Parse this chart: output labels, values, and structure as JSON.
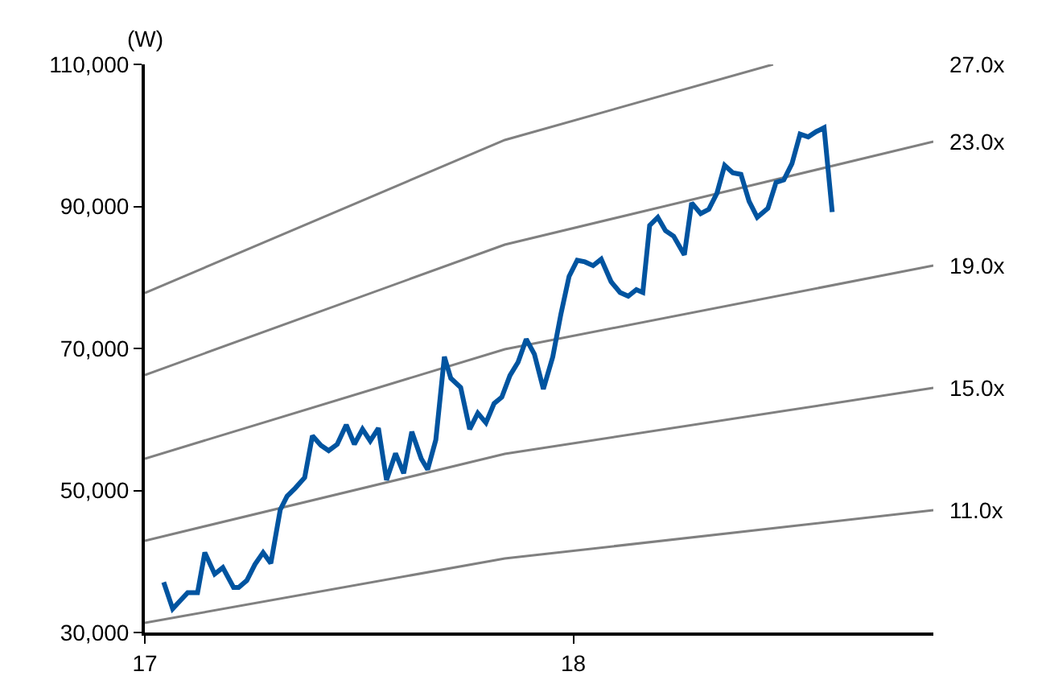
{
  "chart_data": {
    "type": "line",
    "ylabel": "(W)",
    "xlim": [
      17,
      18.84
    ],
    "xticks": [
      17,
      18
    ],
    "ylim": [
      30000,
      110000
    ],
    "yticks": [
      {
        "value": 30000,
        "label": "30,000"
      },
      {
        "value": 50000,
        "label": "50,000"
      },
      {
        "value": 70000,
        "label": "70,000"
      },
      {
        "value": 90000,
        "label": "90,000"
      },
      {
        "value": 110000,
        "label": "110,000"
      }
    ],
    "grid": false,
    "legend": false,
    "marker": "none",
    "line_style": "solid",
    "series": [
      {
        "name": "27.0x",
        "color": "#808080",
        "x": [
          17,
          17.84,
          18.466
        ],
        "values": [
          77800,
          99350,
          110000
        ]
      },
      {
        "name": "23.0x",
        "color": "#808080",
        "x": [
          17,
          17.84,
          18.84
        ],
        "values": [
          66260,
          84620,
          99120
        ]
      },
      {
        "name": "19.0x",
        "color": "#808080",
        "x": [
          17,
          17.84,
          18.84
        ],
        "values": [
          54480,
          69890,
          81670
        ]
      },
      {
        "name": "15.0x",
        "color": "#808080",
        "x": [
          17,
          17.84,
          18.84
        ],
        "values": [
          42920,
          55150,
          64440
        ]
      },
      {
        "name": "11.0x",
        "color": "#808080",
        "x": [
          17,
          17.84,
          18.84
        ],
        "values": [
          31360,
          40420,
          47220
        ]
      },
      {
        "color": "#0054a0",
        "x": [
          17.044,
          17.065,
          17.1,
          17.123,
          17.14,
          17.163,
          17.182,
          17.207,
          17.219,
          17.238,
          17.257,
          17.276,
          17.294,
          17.316,
          17.332,
          17.351,
          17.373,
          17.391,
          17.411,
          17.429,
          17.449,
          17.47,
          17.489,
          17.508,
          17.526,
          17.545,
          17.564,
          17.585,
          17.604,
          17.623,
          17.645,
          17.66,
          17.679,
          17.699,
          17.714,
          17.737,
          17.758,
          17.777,
          17.796,
          17.815,
          17.833,
          17.852,
          17.871,
          17.89,
          17.909,
          17.93,
          17.952,
          17.971,
          17.99,
          18.009,
          18.027,
          18.046,
          18.065,
          18.088,
          18.109,
          18.128,
          18.147,
          18.162,
          18.178,
          18.197,
          18.215,
          18.234,
          18.259,
          18.276,
          18.297,
          18.316,
          18.335,
          18.353,
          18.372,
          18.391,
          18.41,
          18.429,
          18.454,
          18.473,
          18.491,
          18.51,
          18.529,
          18.548,
          18.567,
          18.585,
          18.604
        ],
        "values": [
          37090,
          33330,
          35600,
          35600,
          41260,
          38230,
          39130,
          36350,
          36350,
          37320,
          39590,
          41260,
          39740,
          47290,
          49190,
          50330,
          51820,
          57710,
          56350,
          55610,
          56510,
          59230,
          56510,
          58620,
          56970,
          58780,
          51460,
          55220,
          52430,
          58260,
          54470,
          52950,
          57120,
          68820,
          65800,
          64510,
          58620,
          60890,
          59530,
          62250,
          63150,
          66190,
          68070,
          71310,
          69200,
          64290,
          68820,
          74870,
          80150,
          82410,
          82190,
          81660,
          82570,
          79400,
          77880,
          77360,
          78270,
          77880,
          87330,
          88460,
          86580,
          85810,
          83180,
          90500,
          88980,
          89600,
          91860,
          95780,
          94740,
          94510,
          90730,
          88460,
          89750,
          93380,
          93740,
          96010,
          100180,
          99790,
          100540,
          101080,
          89210
        ]
      }
    ]
  }
}
